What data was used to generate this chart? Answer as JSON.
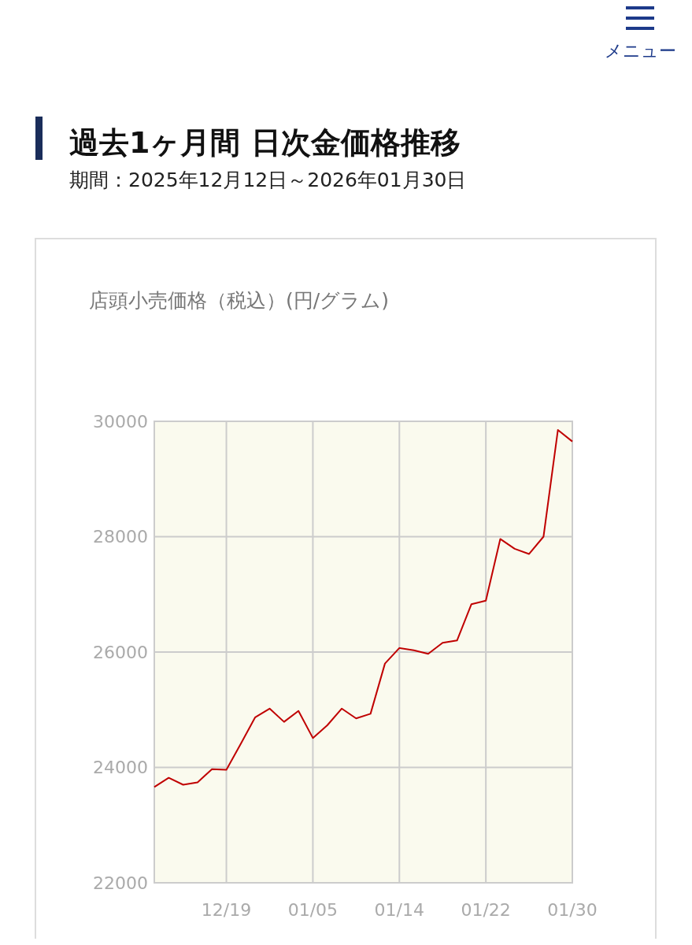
{
  "chart_data": {
    "type": "line",
    "title": "過去1ヶ月間 日次金価格推移",
    "subtitle": "期間：2025年12月12日～2026年01月30日",
    "annotations": [
      "メニュー",
      "店頭小売価格（税込）(円/グラム)"
    ],
    "categories": [
      null,
      null,
      null,
      null,
      null,
      "12/19",
      null,
      null,
      null,
      null,
      null,
      "01/05",
      null,
      null,
      null,
      null,
      null,
      "01/14",
      null,
      null,
      null,
      null,
      null,
      "01/22",
      null,
      null,
      null,
      null,
      null,
      "01/30"
    ],
    "series": [
      {
        "color": "#c00000",
        "values": [
          23660,
          23820,
          23700,
          23740,
          23970,
          23960,
          24410,
          24870,
          25020,
          24790,
          24980,
          24510,
          24730,
          25020,
          24850,
          24930,
          25800,
          26070,
          26030,
          25970,
          26160,
          26200,
          26830,
          26890,
          27960,
          27790,
          27700,
          28000,
          29850,
          29650
        ]
      }
    ],
    "ylim": [
      22000,
      30000
    ],
    "yticks": [
      22000,
      24000,
      26000,
      28000,
      30000
    ],
    "grid": true,
    "marker": "none",
    "line_style": "solid"
  }
}
